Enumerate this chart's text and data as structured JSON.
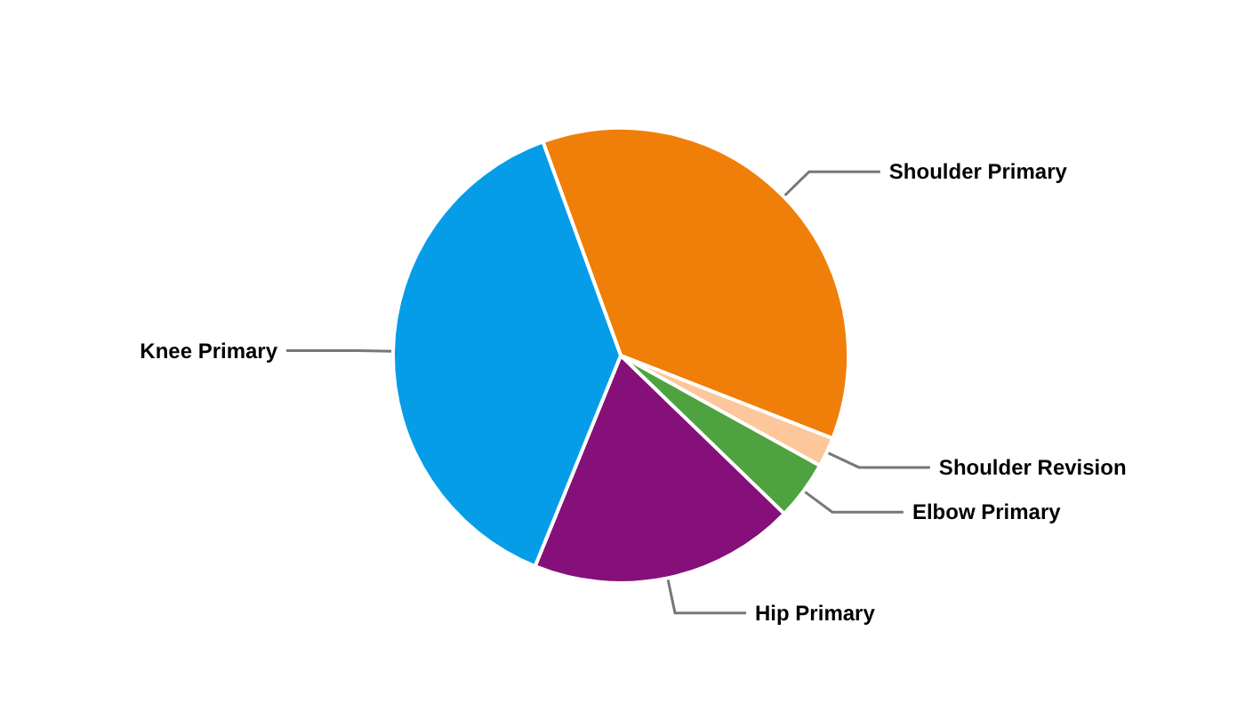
{
  "chart_data": {
    "type": "pie",
    "categories": [
      "Shoulder Primary",
      "Shoulder Revision",
      "Elbow Primary",
      "Hip Primary",
      "Knee Primary"
    ],
    "values": [
      36.5,
      2.1,
      4.2,
      18.9,
      38.3
    ],
    "colors": [
      "#f07f09",
      "#fcc79b",
      "#4ea340",
      "#861079",
      "#069de8"
    ],
    "legend": false
  }
}
